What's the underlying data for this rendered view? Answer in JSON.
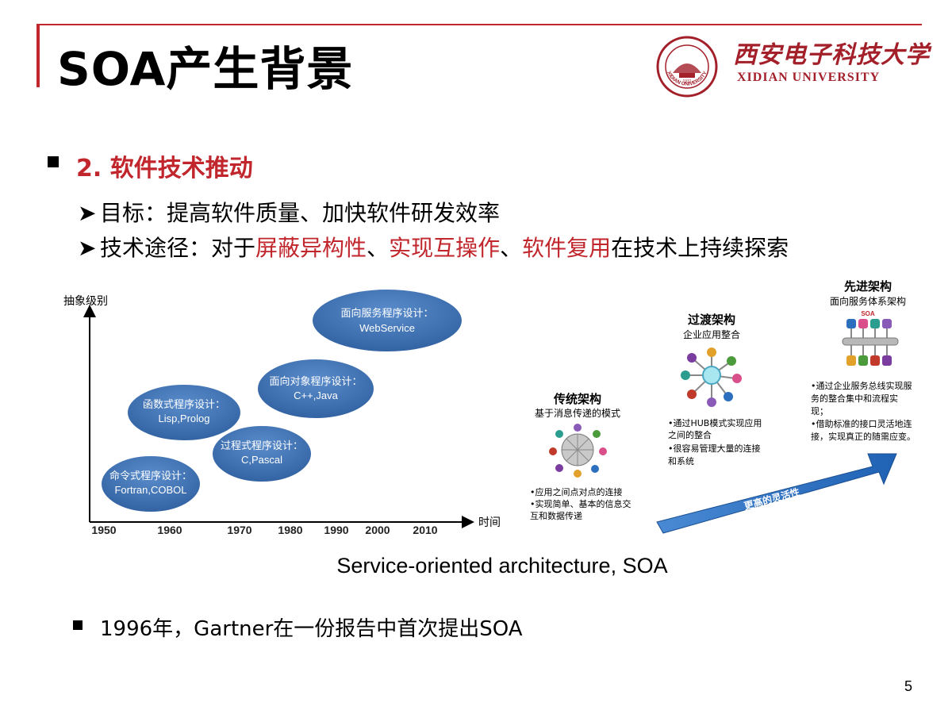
{
  "slide": {
    "title": "SOA产生背景",
    "page_number": "5"
  },
  "logo": {
    "name_cn": "西安电子科技大学",
    "name_en": "XIDIAN UNIVERSITY",
    "seal_text": "XIDIAN UNIVERSITY",
    "seal_year": "1931",
    "colors": {
      "brand": "#a31f2a"
    }
  },
  "section": {
    "heading": "2. 软件技术推动",
    "points": [
      {
        "label": "目标：",
        "text": "提高软件质量、加快软件研发效率"
      },
      {
        "label": "技术途径：",
        "segments": [
          {
            "text": "对于",
            "highlight": false
          },
          {
            "text": "屏蔽异构性",
            "highlight": true
          },
          {
            "text": "、",
            "highlight": false
          },
          {
            "text": "实现互操作",
            "highlight": true
          },
          {
            "text": "、",
            "highlight": false
          },
          {
            "text": "软件复用",
            "highlight": true
          },
          {
            "text": "在技术上持续探索",
            "highlight": false
          }
        ]
      }
    ]
  },
  "timeline_chart": {
    "y_axis_label": "抽象级别",
    "x_axis_label": "时间",
    "x_ticks": [
      "1950",
      "1960",
      "1970",
      "1980",
      "1990",
      "2000",
      "2010"
    ],
    "ellipses": [
      {
        "line1": "命令式程序设计：",
        "line2": "Fortran,COBOL"
      },
      {
        "line1": "函数式程序设计：",
        "line2": "Lisp,Prolog"
      },
      {
        "line1": "过程式程序设计：",
        "line2": "C,Pascal"
      },
      {
        "line1": "面向对象程序设计：",
        "line2": "C++,Java"
      },
      {
        "line1": "面向服务程序设计：",
        "line2": "WebService"
      }
    ],
    "fill_color": "#3c6fb2"
  },
  "evolution": {
    "stages": [
      {
        "title": "传统架构",
        "subtitle": "基于消息传递的模式",
        "notes": [
          "•应用之间点对点的连接",
          "•实现简单、基本的信息交",
          "互和数据传递"
        ]
      },
      {
        "title": "过渡架构",
        "subtitle": "企业应用整合",
        "notes": [
          "•通过HUB模式实现应用",
          "之间的整合",
          "•很容易管理大量的连接",
          "和系统"
        ]
      },
      {
        "title": "先进架构",
        "subtitle": "面向服务体系架构",
        "badge": "SOA",
        "notes": [
          "•通过企业服务总线实现服",
          "务的整合集中和流程实",
          "现；",
          "•借助标准的接口灵活地连",
          "接，实现真正的随需应变。"
        ]
      }
    ],
    "arrow_label": "更高的灵活性",
    "arrow_color": "#2f72c0"
  },
  "caption": "Service-oriented architecture, SOA",
  "bottom_note": "1996年，Gartner在一份报告中首次提出SOA"
}
